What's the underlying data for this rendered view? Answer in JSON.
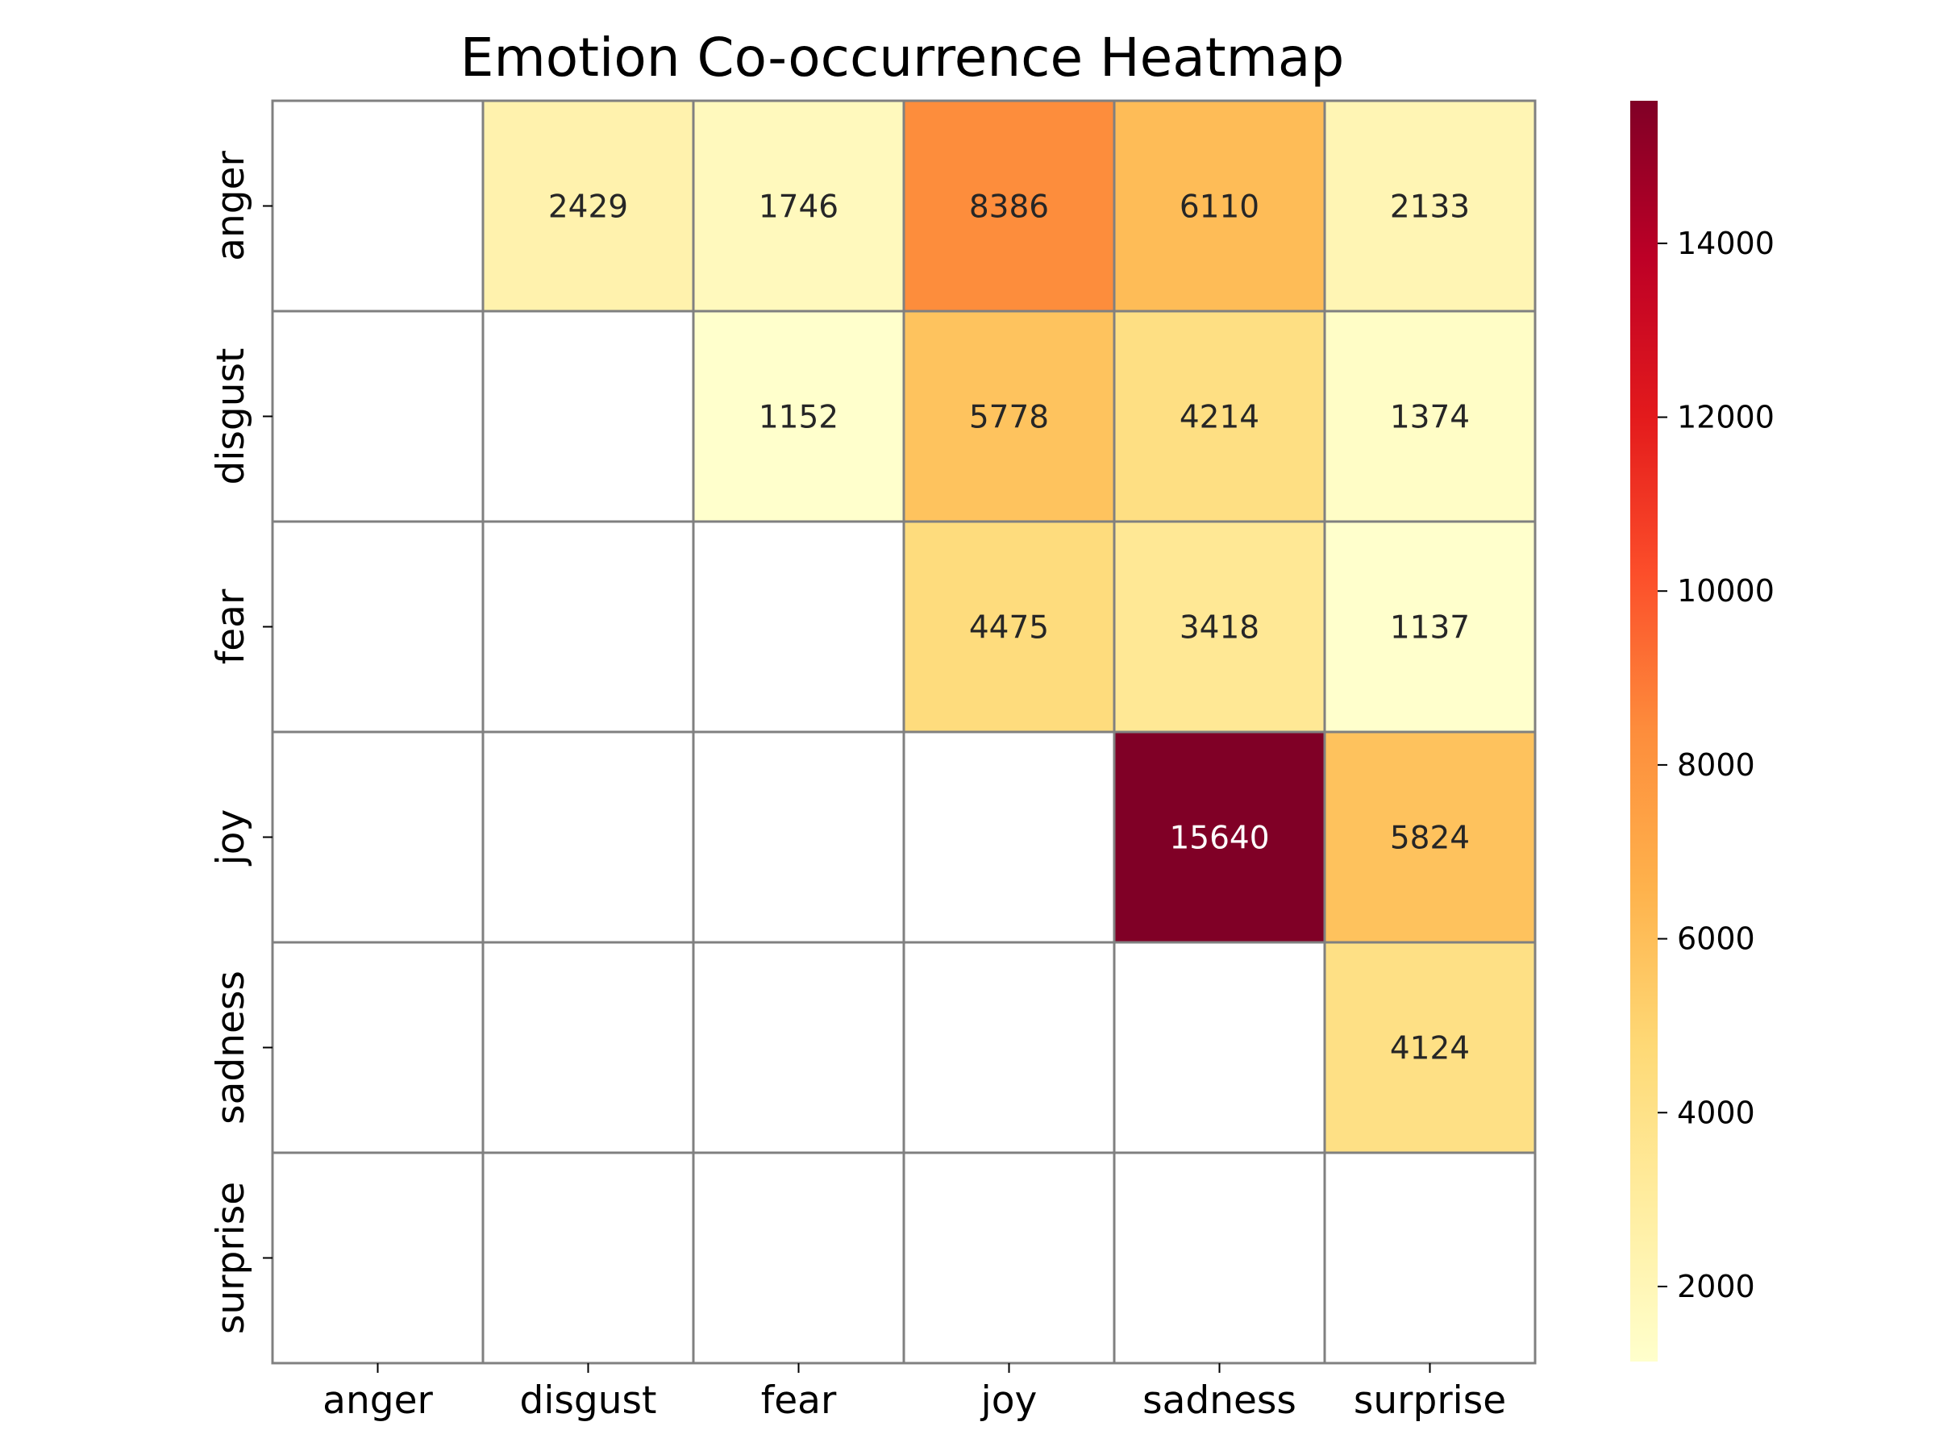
{
  "chart_data": {
    "type": "heatmap",
    "title": "Emotion Co-occurrence Heatmap",
    "xlabel": "",
    "ylabel": "",
    "x_categories": [
      "anger",
      "disgust",
      "fear",
      "joy",
      "sadness",
      "surprise"
    ],
    "y_categories": [
      "anger",
      "disgust",
      "fear",
      "joy",
      "sadness",
      "surprise"
    ],
    "values": [
      [
        null,
        2429,
        1746,
        8386,
        6110,
        2133
      ],
      [
        null,
        null,
        1152,
        5778,
        4214,
        1374
      ],
      [
        null,
        null,
        null,
        4475,
        3418,
        1137
      ],
      [
        null,
        null,
        null,
        null,
        15640,
        5824
      ],
      [
        null,
        null,
        null,
        null,
        null,
        4124
      ],
      [
        null,
        null,
        null,
        null,
        null,
        null
      ]
    ],
    "colormap": "YlOrRd",
    "color_min": 1137,
    "color_max": 15640,
    "colorbar_ticks": [
      2000,
      4000,
      6000,
      8000,
      10000,
      12000,
      14000
    ],
    "grid_color": "#808080",
    "legend": "right"
  }
}
